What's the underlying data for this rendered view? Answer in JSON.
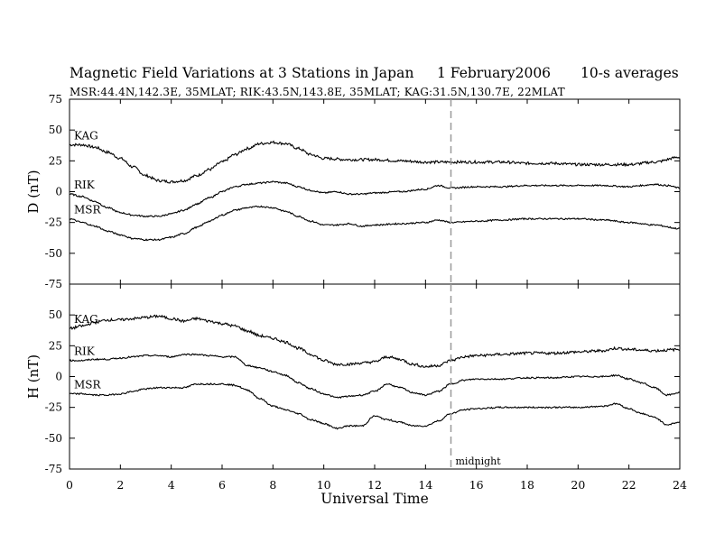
{
  "header": {
    "title": "Magnetic Field Variations at 3 Stations in Japan",
    "date": "1   February2006",
    "averaging": "10-s averages",
    "subtitle": "MSR:44.4N,142.3E, 35MLAT;  RIK:43.5N,143.8E, 35MLAT;  KAG:31.5N,130.7E, 22MLAT"
  },
  "colors": {
    "axis": "#000000",
    "trace": "#000000",
    "marker": "#999999",
    "background": "#ffffff"
  },
  "chart_data": {
    "type": "line",
    "xlabel": "Universal Time",
    "xlim": [
      0,
      24
    ],
    "x_ticks": [
      0,
      2,
      4,
      6,
      8,
      10,
      12,
      14,
      16,
      18,
      20,
      22,
      24
    ],
    "vertical_marker": {
      "x": 15,
      "label": "midnight",
      "style": "dashed"
    },
    "panels": [
      {
        "component": "D",
        "ylabel": "D (nT)",
        "ylim": [
          -75,
          75
        ],
        "y_ticks": [
          -75,
          -50,
          -25,
          0,
          25,
          50,
          75
        ],
        "series": [
          {
            "name": "KAG",
            "x": [
              0,
              0.5,
              1,
              1.5,
              2,
              2.5,
              3,
              3.5,
              4,
              4.5,
              5,
              5.5,
              6,
              6.5,
              7,
              7.5,
              8,
              8.5,
              9,
              9.5,
              10,
              11,
              12,
              13,
              14,
              15,
              16,
              17,
              18,
              19,
              20,
              21,
              22,
              23,
              24
            ],
            "y": [
              38,
              38,
              36,
              32,
              27,
              20,
              13,
              9,
              8,
              9,
              13,
              18,
              24,
              30,
              35,
              39,
              40,
              39,
              35,
              30,
              27,
              26,
              26,
              25,
              24,
              24,
              24,
              24,
              23,
              23,
              22,
              22,
              22,
              24,
              28
            ]
          },
          {
            "name": "RIK",
            "x": [
              0,
              0.5,
              1,
              1.5,
              2,
              2.5,
              3,
              3.5,
              4,
              4.5,
              5,
              5.5,
              6,
              6.5,
              7,
              7.5,
              8,
              8.5,
              9,
              9.5,
              10,
              10.5,
              11,
              11.5,
              12,
              13,
              14,
              14.5,
              15,
              16,
              17,
              18,
              19,
              20,
              21,
              22,
              22.5,
              23,
              23.5,
              24
            ],
            "y": [
              -2,
              -4,
              -8,
              -13,
              -17,
              -19,
              -20,
              -20,
              -18,
              -15,
              -10,
              -5,
              0,
              4,
              6,
              7,
              8,
              7,
              4,
              1,
              -1,
              0,
              -2,
              -2,
              -1,
              0,
              2,
              5,
              3,
              4,
              4,
              5,
              5,
              5,
              5,
              4,
              5,
              6,
              5,
              3
            ]
          },
          {
            "name": "MSR",
            "x": [
              0,
              0.5,
              1,
              1.5,
              2,
              2.5,
              3,
              3.5,
              4,
              4.5,
              5,
              5.5,
              6,
              6.5,
              7,
              7.5,
              8,
              8.5,
              9,
              9.5,
              10,
              10.5,
              11,
              11.5,
              12,
              13,
              14,
              14.5,
              15,
              16,
              17,
              18,
              19,
              20,
              21,
              22,
              23,
              24
            ],
            "y": [
              -22,
              -25,
              -28,
              -32,
              -35,
              -38,
              -39,
              -39,
              -37,
              -34,
              -29,
              -24,
              -19,
              -15,
              -13,
              -12,
              -13,
              -16,
              -20,
              -24,
              -27,
              -27,
              -26,
              -28,
              -27,
              -26,
              -25,
              -23,
              -25,
              -24,
              -23,
              -22,
              -22,
              -22,
              -23,
              -25,
              -27,
              -30
            ]
          }
        ]
      },
      {
        "component": "H",
        "ylabel": "H (nT)",
        "ylim": [
          -75,
          75
        ],
        "y_ticks": [
          -75,
          -50,
          -25,
          0,
          25,
          50,
          75
        ],
        "series": [
          {
            "name": "KAG",
            "x": [
              0,
              0.5,
              1,
              1.5,
              2,
              2.5,
              3,
              3.5,
              4,
              4.5,
              5,
              5.5,
              6,
              6.5,
              7,
              7.5,
              8,
              8.5,
              9,
              9.5,
              10,
              10.5,
              11,
              11.5,
              12,
              12.5,
              13,
              13.5,
              14,
              14.5,
              15,
              15.5,
              16,
              17,
              18,
              19,
              20,
              21,
              21.5,
              22,
              23,
              24
            ],
            "y": [
              39,
              41,
              44,
              46,
              46,
              47,
              48,
              49,
              47,
              45,
              47,
              45,
              43,
              41,
              37,
              33,
              31,
              28,
              23,
              18,
              13,
              10,
              10,
              11,
              12,
              16,
              14,
              10,
              8,
              9,
              13,
              16,
              17,
              18,
              19,
              19,
              20,
              21,
              23,
              22,
              21,
              22
            ]
          },
          {
            "name": "RIK",
            "x": [
              0,
              0.5,
              1,
              1.5,
              2,
              2.5,
              3,
              3.5,
              4,
              4.5,
              5,
              5.5,
              6,
              6.5,
              7,
              7.5,
              8,
              8.5,
              9,
              9.5,
              10,
              10.5,
              11,
              11.5,
              12,
              12.5,
              13,
              13.5,
              14,
              14.5,
              15,
              15.5,
              16,
              17,
              18,
              19,
              20,
              21,
              21.5,
              22,
              22.5,
              23,
              23.5,
              24
            ],
            "y": [
              13,
              13,
              14,
              14,
              15,
              16,
              17,
              17,
              16,
              18,
              18,
              17,
              16,
              16,
              9,
              7,
              4,
              1,
              -5,
              -10,
              -14,
              -17,
              -16,
              -15,
              -12,
              -6,
              -9,
              -13,
              -15,
              -12,
              -6,
              -3,
              -2,
              -2,
              -1,
              -1,
              0,
              0,
              1,
              -2,
              -5,
              -9,
              -15,
              -13
            ]
          },
          {
            "name": "MSR",
            "x": [
              0,
              0.5,
              1,
              1.5,
              2,
              2.5,
              3,
              3.5,
              4,
              4.5,
              5,
              5.5,
              6,
              6.5,
              7,
              7.5,
              8,
              8.5,
              9,
              9.5,
              10,
              10.5,
              11,
              11.5,
              12,
              12.5,
              13,
              13.5,
              14,
              14.5,
              15,
              15.5,
              16,
              17,
              18,
              19,
              20,
              21,
              21.5,
              22,
              22.5,
              23,
              23.5,
              24
            ],
            "y": [
              -14,
              -14,
              -15,
              -15,
              -14,
              -12,
              -10,
              -9,
              -9,
              -9,
              -6,
              -6,
              -6,
              -7,
              -11,
              -18,
              -24,
              -27,
              -30,
              -35,
              -38,
              -42,
              -40,
              -40,
              -32,
              -35,
              -37,
              -40,
              -40,
              -36,
              -30,
              -27,
              -26,
              -25,
              -25,
              -25,
              -25,
              -24,
              -22,
              -26,
              -30,
              -33,
              -39,
              -37
            ]
          }
        ]
      }
    ]
  }
}
